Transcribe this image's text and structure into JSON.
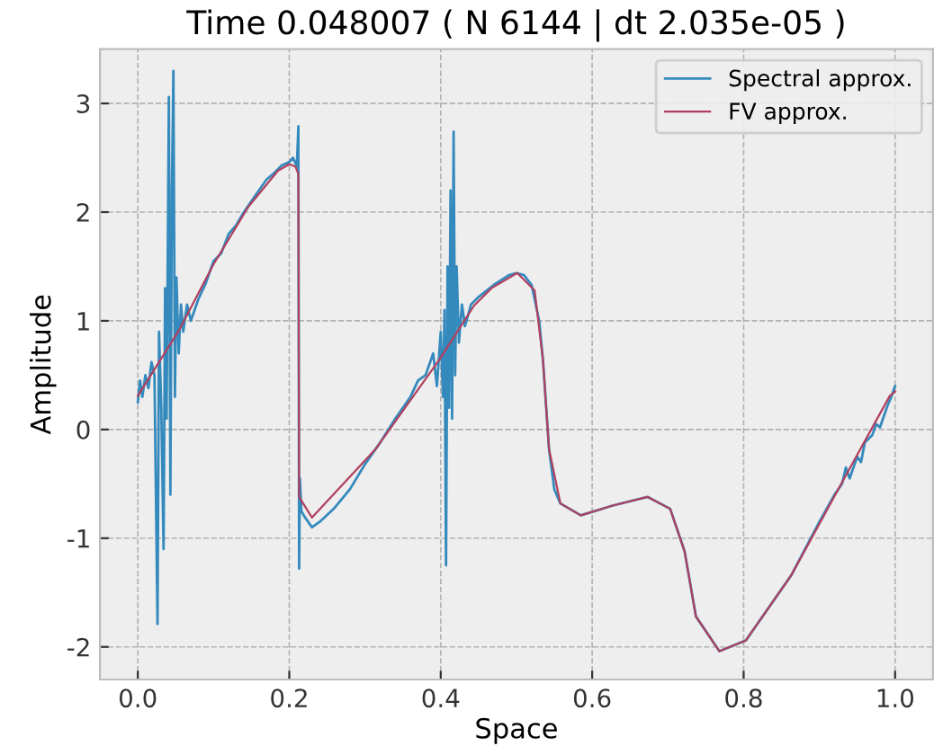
{
  "chart_data": {
    "type": "line",
    "title": "Time 0.048007 ( N 6144 | dt 2.035e-05 )",
    "xlabel": "Space",
    "ylabel": "Amplitude",
    "xlim": [
      -0.05,
      1.05
    ],
    "xticks": [
      {
        "value": 0,
        "label": "0.0"
      },
      {
        "value": 0.2,
        "label": "0.2"
      },
      {
        "value": 0.4,
        "label": "0.4"
      },
      {
        "value": 0.6,
        "label": "0.6"
      },
      {
        "value": 0.8,
        "label": "0.8"
      },
      {
        "value": 1,
        "label": "1.0"
      }
    ],
    "ylim": [
      -2.3,
      3.5
    ],
    "yticks": [
      -2,
      -1,
      0,
      1,
      2,
      3
    ],
    "grid": true,
    "legend": "top right",
    "line_style": "solid",
    "marker": "none",
    "series": [
      {
        "name": "Spectral approx.",
        "color": "#348abd",
        "x": [
          0.0,
          0.003,
          0.006,
          0.01,
          0.014,
          0.018,
          0.022,
          0.026,
          0.028,
          0.031,
          0.034,
          0.036,
          0.038,
          0.041,
          0.043,
          0.045,
          0.047,
          0.049,
          0.051,
          0.054,
          0.057,
          0.06,
          0.065,
          0.07,
          0.08,
          0.09,
          0.1,
          0.11,
          0.12,
          0.13,
          0.14,
          0.15,
          0.16,
          0.17,
          0.18,
          0.19,
          0.2,
          0.205,
          0.21,
          0.212,
          0.213,
          0.214,
          0.216,
          0.22,
          0.23,
          0.24,
          0.26,
          0.28,
          0.3,
          0.32,
          0.34,
          0.36,
          0.37,
          0.38,
          0.39,
          0.395,
          0.4,
          0.403,
          0.405,
          0.407,
          0.409,
          0.411,
          0.413,
          0.415,
          0.417,
          0.419,
          0.421,
          0.424,
          0.428,
          0.432,
          0.44,
          0.45,
          0.47,
          0.49,
          0.5,
          0.51,
          0.52,
          0.53,
          0.535,
          0.543,
          0.55,
          0.558,
          0.585,
          0.627,
          0.673,
          0.703,
          0.722,
          0.737,
          0.768,
          0.803,
          0.863,
          0.9,
          0.92,
          0.93,
          0.935,
          0.94,
          0.95,
          0.955,
          0.96,
          0.97,
          0.975,
          0.98,
          0.99,
          0.995,
          1.0
        ],
        "values": [
          0.25,
          0.45,
          0.3,
          0.5,
          0.38,
          0.62,
          0.5,
          -1.79,
          0.9,
          0.2,
          -1.1,
          1.3,
          0.1,
          3.06,
          -0.6,
          2.2,
          3.3,
          0.3,
          1.4,
          0.7,
          1.15,
          0.9,
          1.15,
          1.0,
          1.2,
          1.35,
          1.55,
          1.62,
          1.8,
          1.88,
          2.0,
          2.1,
          2.2,
          2.3,
          2.36,
          2.43,
          2.46,
          2.5,
          2.42,
          2.79,
          -1.28,
          -0.45,
          -0.75,
          -0.8,
          -0.9,
          -0.85,
          -0.72,
          -0.55,
          -0.32,
          -0.12,
          0.1,
          0.3,
          0.45,
          0.5,
          0.7,
          0.4,
          0.9,
          0.3,
          1.1,
          -1.25,
          1.5,
          0.2,
          2.2,
          0.1,
          2.74,
          0.5,
          1.5,
          0.8,
          1.15,
          0.95,
          1.15,
          1.22,
          1.33,
          1.42,
          1.44,
          1.42,
          1.33,
          1.0,
          0.64,
          -0.18,
          -0.55,
          -0.68,
          -0.79,
          -0.7,
          -0.62,
          -0.73,
          -1.12,
          -1.72,
          -2.04,
          -1.94,
          -1.34,
          -0.85,
          -0.6,
          -0.5,
          -0.35,
          -0.45,
          -0.25,
          -0.3,
          -0.12,
          -0.05,
          0.05,
          0.02,
          0.22,
          0.3,
          0.4
        ]
      },
      {
        "name": "FV approx.",
        "color": "#b0405e",
        "x": [
          0.0,
          0.055,
          0.1,
          0.146,
          0.185,
          0.2,
          0.208,
          0.212,
          0.213,
          0.23,
          0.314,
          0.398,
          0.444,
          0.467,
          0.501,
          0.524,
          0.535,
          0.543,
          0.558,
          0.585,
          0.627,
          0.673,
          0.703,
          0.722,
          0.737,
          0.768,
          0.803,
          0.863,
          0.932,
          0.993,
          1.0
        ],
        "values": [
          0.31,
          0.92,
          1.52,
          2.05,
          2.38,
          2.44,
          2.42,
          2.35,
          -0.62,
          -0.81,
          -0.18,
          0.64,
          1.14,
          1.3,
          1.44,
          1.28,
          0.64,
          -0.18,
          -0.68,
          -0.79,
          -0.7,
          -0.62,
          -0.73,
          -1.12,
          -1.72,
          -2.04,
          -1.94,
          -1.34,
          -0.46,
          0.31,
          0.35
        ]
      }
    ]
  }
}
